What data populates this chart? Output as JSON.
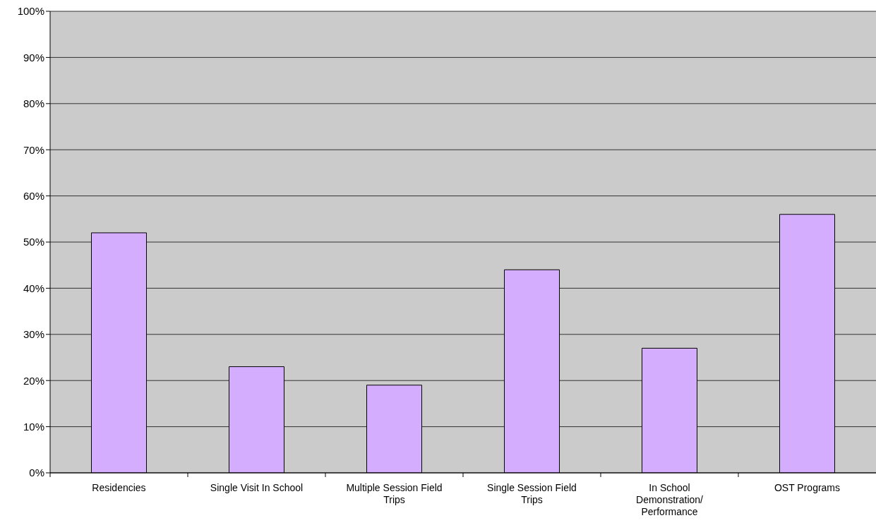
{
  "chart_data": {
    "type": "bar",
    "categories": [
      "Residencies",
      "Single Visit In School",
      "Multiple Session Field Trips",
      "Single Session Field Trips",
      "In School Demonstration/ Performance",
      "OST Programs"
    ],
    "values": [
      52,
      23,
      19,
      44,
      27,
      56
    ],
    "color": "#d5adff",
    "ylim": [
      0,
      100
    ],
    "yticks": [
      {
        "value": 0,
        "label": "0%"
      },
      {
        "value": 10,
        "label": "10%"
      },
      {
        "value": 20,
        "label": "20%"
      },
      {
        "value": 30,
        "label": "30%"
      },
      {
        "value": 40,
        "label": "40%"
      },
      {
        "value": 50,
        "label": "50%"
      },
      {
        "value": 60,
        "label": "60%"
      },
      {
        "value": 70,
        "label": "70%"
      },
      {
        "value": 80,
        "label": "80%"
      },
      {
        "value": 90,
        "label": "90%"
      },
      {
        "value": 100,
        "label": "100%"
      }
    ],
    "grid": "y",
    "legend": false
  }
}
